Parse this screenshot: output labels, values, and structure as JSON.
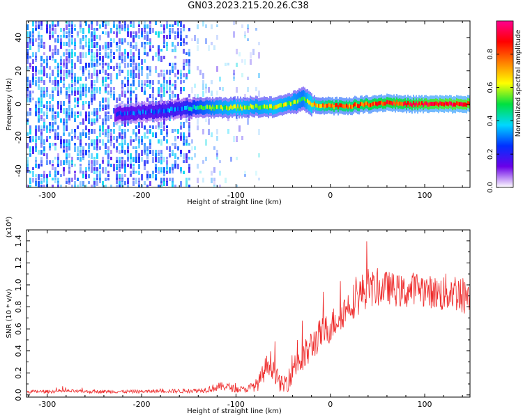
{
  "title": "GN03.2023.215.20.26.C38",
  "colors": {
    "series": "#ee2a2a",
    "axis": "#000000",
    "cmap": [
      "#ffffff",
      "#6a00e8",
      "#0030ff",
      "#00d8ff",
      "#00e040",
      "#ffff00",
      "#ff8000",
      "#ff0000",
      "#ff0090"
    ]
  },
  "chart_data": [
    {
      "type": "heatmap",
      "xlabel": "Height of straight line (km)",
      "ylabel": "Frequency (Hz)",
      "xlim": [
        -322,
        148
      ],
      "ylim": [
        -50,
        50
      ],
      "xticks": [
        -300,
        -200,
        -100,
        0,
        100
      ],
      "xtick_labels": [
        "-300",
        "-200",
        "-100",
        "0",
        "100"
      ],
      "yticks": [
        -40,
        -20,
        0,
        20,
        40
      ],
      "ytick_labels": [
        "-40",
        "-20",
        "0",
        "20",
        "40"
      ],
      "colorbar": {
        "label": "Normalized spectral amplitude",
        "range": [
          0,
          1
        ],
        "ticks": [
          0.0,
          0.2,
          0.4,
          0.6,
          0.8
        ],
        "tick_labels": [
          "0.0",
          "0.2",
          "0.4",
          "0.6",
          "0.8"
        ]
      },
      "ridge": {
        "x": [
          -230,
          -200,
          -160,
          -140,
          -120,
          -100,
          -80,
          -60,
          -40,
          -30,
          -20,
          0,
          20,
          40,
          60,
          80,
          100,
          120,
          148
        ],
        "frequency": [
          -6,
          -5,
          -3,
          -2,
          -2,
          -2,
          -1.5,
          -2,
          1,
          3,
          0,
          -1,
          -1,
          0,
          1,
          0,
          0,
          0,
          0
        ],
        "amplitude": [
          0.2,
          0.25,
          0.3,
          0.45,
          0.55,
          0.6,
          0.55,
          0.6,
          0.55,
          0.5,
          0.65,
          0.8,
          0.78,
          0.82,
          0.85,
          0.85,
          0.88,
          0.9,
          0.9
        ]
      }
    },
    {
      "type": "line",
      "xlabel": "Height of straight line (km)",
      "ylabel": "SNR (10 * v/v)",
      "y_multiplier": "(x10⁴)",
      "xlim": [
        -322,
        148
      ],
      "ylim": [
        -0.02,
        1.5
      ],
      "xticks": [
        -300,
        -200,
        -100,
        0,
        100
      ],
      "xtick_labels": [
        "-300",
        "-200",
        "-100",
        "0",
        "100"
      ],
      "yticks": [
        0.0,
        0.2,
        0.4,
        0.6,
        0.8,
        1.0,
        1.2,
        1.4
      ],
      "ytick_labels": [
        "0.0",
        "0.2",
        "0.4",
        "0.6",
        "0.8",
        "1.0",
        "1.2",
        "1.4"
      ],
      "series": [
        {
          "x": [
            -322,
            -300,
            -280,
            -260,
            -240,
            -220,
            -200,
            -180,
            -160,
            -140,
            -130,
            -120,
            -110,
            -100,
            -90,
            -80,
            -75,
            -70,
            -65,
            -60,
            -55,
            -50,
            -45,
            -40,
            -35,
            -30,
            -25,
            -20,
            -15,
            -10,
            -5,
            0,
            10,
            20,
            30,
            40,
            50,
            60,
            70,
            80,
            90,
            100,
            110,
            120,
            130,
            140,
            148
          ],
          "y": [
            0.03,
            0.03,
            0.035,
            0.03,
            0.03,
            0.03,
            0.03,
            0.035,
            0.035,
            0.04,
            0.05,
            0.07,
            0.08,
            0.05,
            0.05,
            0.08,
            0.12,
            0.22,
            0.3,
            0.25,
            0.12,
            0.08,
            0.15,
            0.25,
            0.32,
            0.3,
            0.38,
            0.45,
            0.5,
            0.55,
            0.58,
            0.62,
            0.72,
            0.82,
            0.9,
            0.98,
            0.95,
            0.98,
            0.95,
            0.93,
            0.98,
            0.95,
            0.93,
            0.92,
            0.95,
            0.9,
            0.92
          ],
          "noise": [
            0.015,
            0.015,
            0.015,
            0.015,
            0.015,
            0.015,
            0.015,
            0.015,
            0.02,
            0.02,
            0.03,
            0.04,
            0.04,
            0.03,
            0.03,
            0.05,
            0.08,
            0.1,
            0.12,
            0.12,
            0.08,
            0.08,
            0.12,
            0.14,
            0.15,
            0.15,
            0.15,
            0.15,
            0.15,
            0.15,
            0.15,
            0.15,
            0.15,
            0.15,
            0.18,
            0.18,
            0.15,
            0.15,
            0.15,
            0.15,
            0.15,
            0.15,
            0.15,
            0.18,
            0.18,
            0.18,
            0.15
          ]
        }
      ]
    }
  ]
}
